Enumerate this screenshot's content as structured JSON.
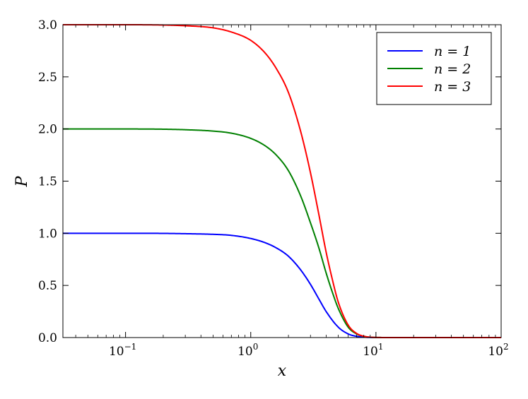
{
  "chart_data": {
    "type": "line",
    "xscale": "log",
    "xlabel": "x",
    "ylabel": "P",
    "xlim": [
      0.0316,
      100
    ],
    "ylim": [
      0,
      3.0
    ],
    "grid": false,
    "legend_position": "top-right",
    "x_ticks": [
      {
        "value": 0.1,
        "base": "10",
        "exp": "−1"
      },
      {
        "value": 1,
        "base": "10",
        "exp": "0"
      },
      {
        "value": 10,
        "base": "10",
        "exp": "1"
      },
      {
        "value": 100,
        "base": "10",
        "exp": "2"
      }
    ],
    "y_ticks": [
      {
        "value": 0.0,
        "label": "0.0"
      },
      {
        "value": 0.5,
        "label": "0.5"
      },
      {
        "value": 1.0,
        "label": "1.0"
      },
      {
        "value": 1.5,
        "label": "1.5"
      },
      {
        "value": 2.0,
        "label": "2.0"
      },
      {
        "value": 2.5,
        "label": "2.5"
      },
      {
        "value": 3.0,
        "label": "3.0"
      }
    ],
    "series": [
      {
        "name": "n = 1",
        "color": "#0000ff",
        "x": [
          0.0316,
          0.1,
          0.2,
          0.3,
          0.5,
          0.7,
          1.0,
          1.3,
          1.6,
          2.0,
          2.5,
          3.0,
          3.5,
          4.0,
          5.0,
          6.0,
          7.0,
          8.0,
          10.0,
          15.0,
          30.0,
          100.0
        ],
        "y": [
          1.0,
          1.0,
          0.999,
          0.996,
          0.99,
          0.98,
          0.95,
          0.91,
          0.86,
          0.78,
          0.65,
          0.51,
          0.37,
          0.25,
          0.1,
          0.035,
          0.012,
          0.004,
          0.0005,
          0.0,
          0.0,
          0.0
        ]
      },
      {
        "name": "n = 2",
        "color": "#008000",
        "x": [
          0.0316,
          0.1,
          0.2,
          0.3,
          0.5,
          0.7,
          1.0,
          1.3,
          1.6,
          2.0,
          2.5,
          3.0,
          3.5,
          4.0,
          4.5,
          5.0,
          6.0,
          7.0,
          8.0,
          10.0,
          15.0,
          30.0,
          100.0
        ],
        "y": [
          2.0,
          2.0,
          1.998,
          1.993,
          1.98,
          1.96,
          1.91,
          1.84,
          1.75,
          1.6,
          1.36,
          1.1,
          0.86,
          0.62,
          0.43,
          0.28,
          0.1,
          0.035,
          0.012,
          0.001,
          0.0,
          0.0,
          0.0
        ]
      },
      {
        "name": "n = 3",
        "color": "#ff0000",
        "x": [
          0.0316,
          0.1,
          0.2,
          0.3,
          0.5,
          0.7,
          1.0,
          1.3,
          1.6,
          2.0,
          2.5,
          3.0,
          3.5,
          4.0,
          4.5,
          5.0,
          6.0,
          7.0,
          8.0,
          10.0,
          15.0,
          30.0,
          100.0
        ],
        "y": [
          3.0,
          3.0,
          2.997,
          2.99,
          2.97,
          2.93,
          2.85,
          2.73,
          2.58,
          2.35,
          1.98,
          1.58,
          1.18,
          0.82,
          0.55,
          0.34,
          0.12,
          0.04,
          0.013,
          0.001,
          0.0,
          0.0,
          0.0
        ]
      }
    ]
  }
}
